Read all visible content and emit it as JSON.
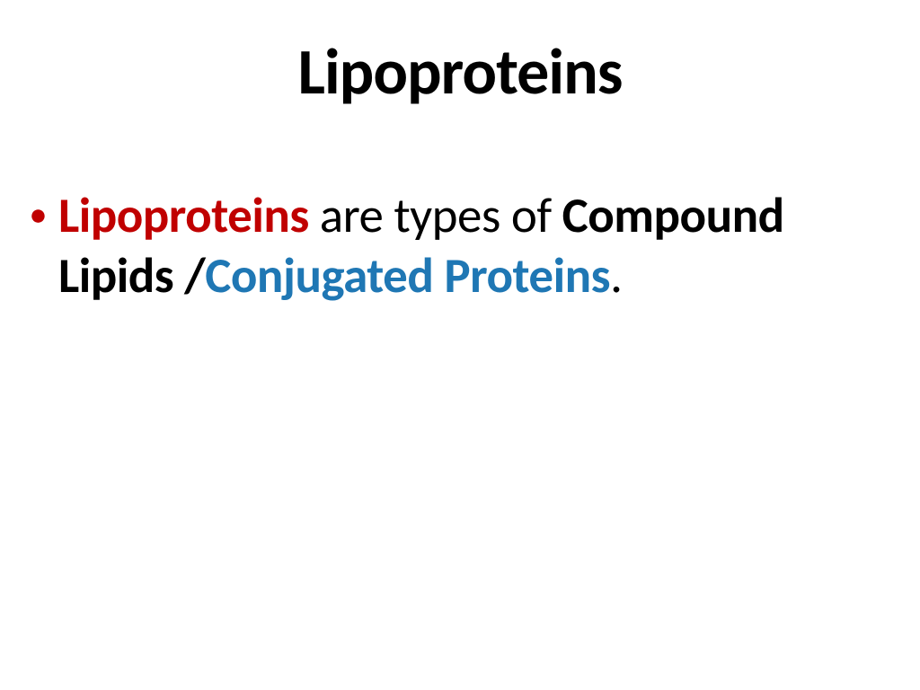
{
  "slide": {
    "title": "Lipoproteins",
    "title_color": "#000000",
    "title_fontsize": 72,
    "title_fontweight": 700,
    "background_color": "#ffffff",
    "bullet": {
      "marker_color": "#c00000",
      "marker_glyph": "•",
      "fontsize": 55,
      "line_height": 1.22,
      "runs": {
        "r1": "Lipoproteins ",
        "r2": "are types of ",
        "r3": "Compound Lipids /",
        "r4": "Conjugated Proteins",
        "r5": "."
      },
      "colors": {
        "red": "#c00000",
        "black": "#000000",
        "blue": "#1f77b4"
      },
      "weights": {
        "bold": 700,
        "regular": 400
      }
    }
  }
}
